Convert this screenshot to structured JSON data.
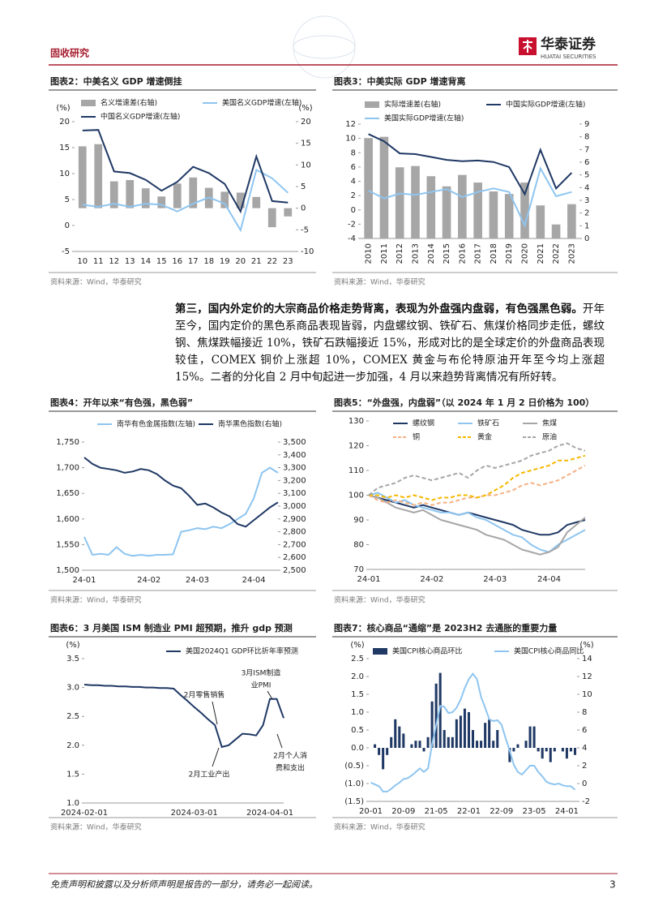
{
  "header": {
    "title": "固收研究",
    "logo_cn": "华泰证券",
    "logo_en": "HUATAI SECURITIES"
  },
  "paragraph": {
    "lead": "第三，国内外定价的大宗商品价格走势背离，表现为外盘强内盘弱，有色强黑色弱。",
    "body": "开年至今，国内定价的黑色系商品表现皆弱，内盘螺纹钢、铁矿石、焦煤价格同步走低，螺纹钢、焦煤跌幅接近 10%，铁矿石跌幅接近 15%，形成对比的是全球定价的外盘商品表现较佳，COMEX 铜价上涨超 10%，COMEX 黄金与布伦特原油开年至今均上涨超 15%。二者的分化自 2 月中旬起进一步加强，4 月以来趋势背离情况有所好转。"
  },
  "footer": {
    "disclaimer": "免责声明和披露以及分析师声明是报告的一部分，请务必一起阅读。",
    "page": "3"
  },
  "chart_data": [
    {
      "type": "combo",
      "title": "图表2：中美名义 GDP 增速倒挂",
      "y_unit": "(%)",
      "y2_unit": "(%)",
      "categories": [
        "10",
        "11",
        "12",
        "13",
        "14",
        "15",
        "16",
        "17",
        "18",
        "19",
        "20",
        "21",
        "22",
        "23"
      ],
      "series": [
        {
          "name": "名义增速差(右轴)",
          "mark": "bar",
          "axis": "y2",
          "color": "#a6a6a6",
          "values": [
            14.3,
            14.8,
            6.2,
            6.5,
            4.6,
            2.7,
            5.7,
            7.1,
            4.7,
            3.8,
            3.6,
            2.6,
            -4.4,
            -1.9
          ]
        },
        {
          "name": "美国名义GDP增速(左轴)",
          "mark": "line",
          "color": "#8ec5f0",
          "values": [
            4.0,
            3.6,
            4.2,
            3.6,
            4.2,
            4.0,
            2.7,
            4.2,
            5.4,
            4.2,
            -0.9,
            10.7,
            9.1,
            6.3
          ]
        },
        {
          "name": "中国名义GDP增速(左轴)",
          "mark": "line",
          "color": "#1f3864",
          "values": [
            18.3,
            18.4,
            10.4,
            10.1,
            8.8,
            6.7,
            8.4,
            11.3,
            10.1,
            8.0,
            2.7,
            13.3,
            4.7,
            4.4
          ]
        }
      ],
      "ylim": [
        -5,
        20
      ],
      "yticks": [
        -5,
        0,
        5,
        10,
        15,
        20
      ],
      "y2lim": [
        -10,
        20
      ],
      "y2ticks": [
        -10,
        -5,
        0,
        5,
        10,
        15,
        20
      ],
      "source": "资料来源：Wind，华泰研究"
    },
    {
      "type": "combo",
      "title": "图表3：中美实际 GDP 增速背离",
      "categories": [
        "2010",
        "2011",
        "2012",
        "2013",
        "2014",
        "2015",
        "2016",
        "2017",
        "2018",
        "2019",
        "2020",
        "2021",
        "2022",
        "2023"
      ],
      "series": [
        {
          "name": "实际增速差(右轴)",
          "mark": "bar",
          "axis": "y2",
          "color": "#a6a6a6",
          "values": [
            7.9,
            8.0,
            5.6,
            5.7,
            4.9,
            4.1,
            5.0,
            4.4,
            3.7,
            3.5,
            4.4,
            2.6,
            1.1,
            2.7
          ]
        },
        {
          "name": "中国实际GDP增速(左轴)",
          "mark": "line",
          "color": "#1f3864",
          "values": [
            10.6,
            9.6,
            7.9,
            7.8,
            7.4,
            7.0,
            6.8,
            6.9,
            6.7,
            6.0,
            2.2,
            8.4,
            3.0,
            5.2
          ]
        },
        {
          "name": "美国实际GDP增速(左轴)",
          "mark": "line",
          "color": "#8ec5f0",
          "values": [
            2.7,
            1.6,
            2.3,
            2.1,
            2.5,
            2.9,
            1.8,
            2.5,
            3.0,
            2.5,
            -2.2,
            5.8,
            1.9,
            2.5
          ]
        }
      ],
      "ylim": [
        -4,
        12
      ],
      "yticks": [
        -4,
        -2,
        0,
        2,
        4,
        6,
        8,
        10,
        12
      ],
      "y2lim": [
        0,
        9
      ],
      "y2ticks": [
        0,
        1,
        2,
        3,
        4,
        5,
        6,
        7,
        8,
        9
      ],
      "source": "资料来源：Wind，华泰研究"
    },
    {
      "type": "line",
      "title": "图表4：开年以来“有色强，黑色弱”",
      "categories": [
        "24-01",
        null,
        null,
        null,
        null,
        null,
        null,
        null,
        "24-02",
        null,
        null,
        null,
        null,
        null,
        "24-03",
        null,
        null,
        null,
        null,
        null,
        null,
        "24-04",
        null,
        null,
        null
      ],
      "series": [
        {
          "name": "南华有色金属指数(左轴)",
          "mark": "line",
          "color": "#8ec5f0",
          "values": [
            1565,
            1530,
            1532,
            1530,
            1545,
            1532,
            1528,
            1530,
            1528,
            1530,
            1530,
            1531,
            1575,
            1578,
            1582,
            1580,
            1585,
            1582,
            1590,
            1600,
            1610,
            1640,
            1690,
            1700,
            1690
          ]
        },
        {
          "name": "南华黑色指数(右轴)",
          "mark": "line",
          "axis": "y2",
          "color": "#1f3864",
          "values": [
            3380,
            3330,
            3300,
            3290,
            3280,
            3260,
            3270,
            3290,
            3280,
            3250,
            3200,
            3160,
            3140,
            3080,
            3010,
            3020,
            2990,
            2950,
            2920,
            2860,
            2840,
            2890,
            2940,
            2990,
            3030
          ]
        }
      ],
      "ylim": [
        1500,
        1750
      ],
      "yticks": [
        {
          "value": 1500,
          "label": "1,500"
        },
        {
          "value": 1550,
          "label": "1,550"
        },
        {
          "value": 1600,
          "label": "1,600"
        },
        {
          "value": 1650,
          "label": "1,650"
        },
        {
          "value": 1700,
          "label": "1,700"
        },
        {
          "value": 1750,
          "label": "1,750"
        }
      ],
      "y2lim": [
        2500,
        3500
      ],
      "y2ticks": [
        {
          "value": 2500,
          "label": "2,500"
        },
        {
          "value": 2600,
          "label": "2,600"
        },
        {
          "value": 2700,
          "label": "2,700"
        },
        {
          "value": 2800,
          "label": "2,800"
        },
        {
          "value": 2900,
          "label": "2,900"
        },
        {
          "value": 3000,
          "label": "3,000"
        },
        {
          "value": 3100,
          "label": "3,100"
        },
        {
          "value": 3200,
          "label": "3,200"
        },
        {
          "value": 3300,
          "label": "3,300"
        },
        {
          "value": 3400,
          "label": "3,400"
        },
        {
          "value": 3500,
          "label": "3,500"
        }
      ],
      "source": "资料来源：Wind，华泰研究"
    },
    {
      "type": "line",
      "title": "图表5：“外盘强，内盘弱”（以 2024 年 1 月 2 日价格为 100）",
      "categories": [
        "24-01",
        null,
        null,
        null,
        null,
        null,
        null,
        "24-02",
        null,
        null,
        null,
        null,
        null,
        null,
        "24-03",
        null,
        null,
        null,
        null,
        null,
        "24-04",
        null,
        null,
        null,
        null
      ],
      "series": [
        {
          "name": "螺纹钢",
          "mark": "line",
          "color": "#1f3864",
          "values": [
            100,
            99,
            98,
            97,
            96,
            95,
            96,
            95,
            94,
            93,
            92,
            93,
            92,
            91,
            90,
            89,
            88,
            86,
            85,
            84,
            84,
            85,
            88,
            89,
            90
          ]
        },
        {
          "name": "铁矿石",
          "mark": "line",
          "color": "#8ec5f0",
          "values": [
            100,
            101,
            99,
            97,
            98,
            96,
            95,
            94,
            93,
            93,
            92,
            93,
            91,
            90,
            88,
            86,
            84,
            83,
            80,
            78,
            77,
            80,
            82,
            84,
            86
          ]
        },
        {
          "name": "焦煤",
          "mark": "line",
          "color": "#a6a6a6",
          "values": [
            100,
            99,
            97,
            95,
            94,
            93,
            94,
            92,
            90,
            89,
            88,
            87,
            86,
            84,
            83,
            82,
            80,
            78,
            77,
            76,
            77,
            79,
            85,
            88,
            91
          ]
        },
        {
          "name": "铜",
          "mark": "line",
          "dash": true,
          "color": "#f4b183",
          "values": [
            100,
            98,
            97,
            98,
            97,
            96,
            97,
            96,
            97,
            97,
            98,
            99,
            99,
            100,
            100,
            101,
            102,
            104,
            105,
            104,
            105,
            106,
            108,
            110,
            112
          ]
        },
        {
          "name": "黄金",
          "mark": "line",
          "dash": true,
          "color": "#f5b800",
          "values": [
            100,
            100,
            99,
            100,
            99,
            100,
            99,
            98,
            99,
            99,
            100,
            100,
            99,
            100,
            102,
            104,
            107,
            109,
            110,
            111,
            112,
            114,
            114,
            115,
            116
          ]
        },
        {
          "name": "原油",
          "mark": "line",
          "dash": true,
          "color": "#a6a6a6",
          "values": [
            100,
            103,
            104,
            105,
            107,
            108,
            107,
            106,
            107,
            108,
            109,
            107,
            110,
            112,
            111,
            112,
            113,
            114,
            116,
            117,
            118,
            120,
            121,
            119,
            118
          ]
        }
      ],
      "ylim": [
        70,
        130
      ],
      "yticks": [
        70,
        80,
        90,
        100,
        110,
        120,
        130
      ],
      "source": "资料来源：Wind，华泰研究"
    },
    {
      "type": "line",
      "title": "图表6：3 月美国 ISM 制造业 PMI 超预期，推升 gdp 预测",
      "y_unit": "(%)",
      "categories": [
        "2024-02-01",
        null,
        null,
        null,
        null,
        null,
        null,
        null,
        null,
        null,
        null,
        null,
        null,
        null,
        null,
        null,
        "2024-03-01",
        null,
        null,
        null,
        null,
        null,
        null,
        null,
        null,
        null,
        null,
        "2024-04-01",
        null,
        null
      ],
      "series": [
        {
          "name": "美国2024Q1 GDP环比折年率预测",
          "mark": "line",
          "color": "#1f3864",
          "values": [
            3.05,
            3.04,
            3.04,
            3.03,
            3.03,
            3.02,
            3.02,
            3.01,
            3.01,
            3.0,
            3.0,
            2.99,
            2.99,
            2.98,
            2.87,
            2.77,
            2.66,
            2.56,
            2.45,
            2.35,
            1.97,
            2.0,
            2.1,
            2.2,
            2.19,
            2.17,
            2.35,
            2.8,
            2.8,
            2.47
          ]
        }
      ],
      "ylim": [
        1,
        3.5
      ],
      "yticks": [
        {
          "value": 1,
          "label": "1.0"
        },
        1.5,
        {
          "value": 2,
          "label": "2.0"
        },
        2.5,
        {
          "value": 3,
          "label": "3.0"
        },
        3.5
      ],
      "annotations": [
        {
          "lines": [
            "2月零售销售"
          ]
        },
        {
          "lines": [
            "2月工业产出"
          ]
        },
        {
          "lines": [
            "3月ISM制造",
            "业PMI"
          ]
        },
        {
          "lines": [
            "2月个人消",
            "费和支出"
          ]
        }
      ],
      "source": "资料来源：Wind，华泰研究"
    },
    {
      "type": "combo",
      "title": "图表7：核心商品“通缩”是 2023H2 去通胀的重要力量",
      "y_unit": "(%)",
      "y2_unit": "(%)",
      "categories": [
        "20-01",
        null,
        null,
        null,
        null,
        null,
        null,
        null,
        "20-09",
        null,
        null,
        null,
        null,
        null,
        null,
        null,
        "21-05",
        null,
        null,
        null,
        null,
        null,
        null,
        null,
        "22-01",
        null,
        null,
        null,
        null,
        null,
        null,
        null,
        "22-09",
        null,
        null,
        null,
        null,
        null,
        null,
        null,
        "23-05",
        null,
        null,
        null,
        null,
        null,
        null,
        null,
        "24-01",
        null,
        null
      ],
      "series": [
        {
          "name": "美国CPI核心商品环比",
          "mark": "bar",
          "color": "#1f3864",
          "values": [
            0.0,
            0.1,
            -0.2,
            -0.6,
            -0.2,
            0.3,
            0.8,
            0.6,
            0.4,
            0.0,
            0.1,
            0.2,
            0.2,
            -0.1,
            0.3,
            1.3,
            1.8,
            2.1,
            0.5,
            0.3,
            0.3,
            0.8,
            0.9,
            1.1,
            1.0,
            0.5,
            0.2,
            0.2,
            0.7,
            0.8,
            0.2,
            0.5,
            0.0,
            0.0,
            -0.4,
            -0.1,
            0.1,
            0.0,
            0.2,
            0.6,
            0.6,
            -0.1,
            -0.3,
            -0.1,
            -0.4,
            -0.1,
            0.0,
            -0.1,
            -0.3,
            -0.1,
            -0.2
          ]
        },
        {
          "name": "美国CPI核心商品同比",
          "mark": "line",
          "axis": "y2",
          "color": "#8ec5f0",
          "values": [
            0.1,
            -0.1,
            -0.3,
            -0.9,
            -0.9,
            -0.6,
            -0.2,
            0.1,
            0.5,
            0.6,
            0.9,
            1.3,
            1.7,
            1.3,
            1.7,
            4.4,
            6.5,
            8.7,
            8.6,
            7.9,
            8.0,
            8.5,
            9.4,
            10.7,
            11.7,
            12.3,
            11.7,
            9.7,
            8.5,
            7.2,
            7.0,
            7.1,
            6.6,
            5.1,
            3.7,
            2.1,
            1.3,
            1.0,
            1.5,
            2.0,
            2.0,
            1.3,
            0.8,
            0.2,
            0.0,
            -0.1,
            0.0,
            -0.2,
            -0.3,
            -0.3,
            -0.7
          ]
        }
      ],
      "ylim": [
        -1.5,
        2.5
      ],
      "yticks": [
        {
          "value": -1.5,
          "label": "(1.5)"
        },
        {
          "value": -1,
          "label": "(1.0)"
        },
        {
          "value": -0.5,
          "label": "(0.5)"
        },
        {
          "value": 0,
          "label": "0.0"
        },
        0.5,
        {
          "value": 1,
          "label": "1.0"
        },
        1.5,
        {
          "value": 2,
          "label": "2.0"
        },
        2.5
      ],
      "y2lim": [
        -2,
        14
      ],
      "y2ticks": [
        -2,
        0,
        2,
        4,
        6,
        8,
        10,
        12,
        14
      ],
      "source": "资料来源：Wind，华泰研究"
    }
  ]
}
